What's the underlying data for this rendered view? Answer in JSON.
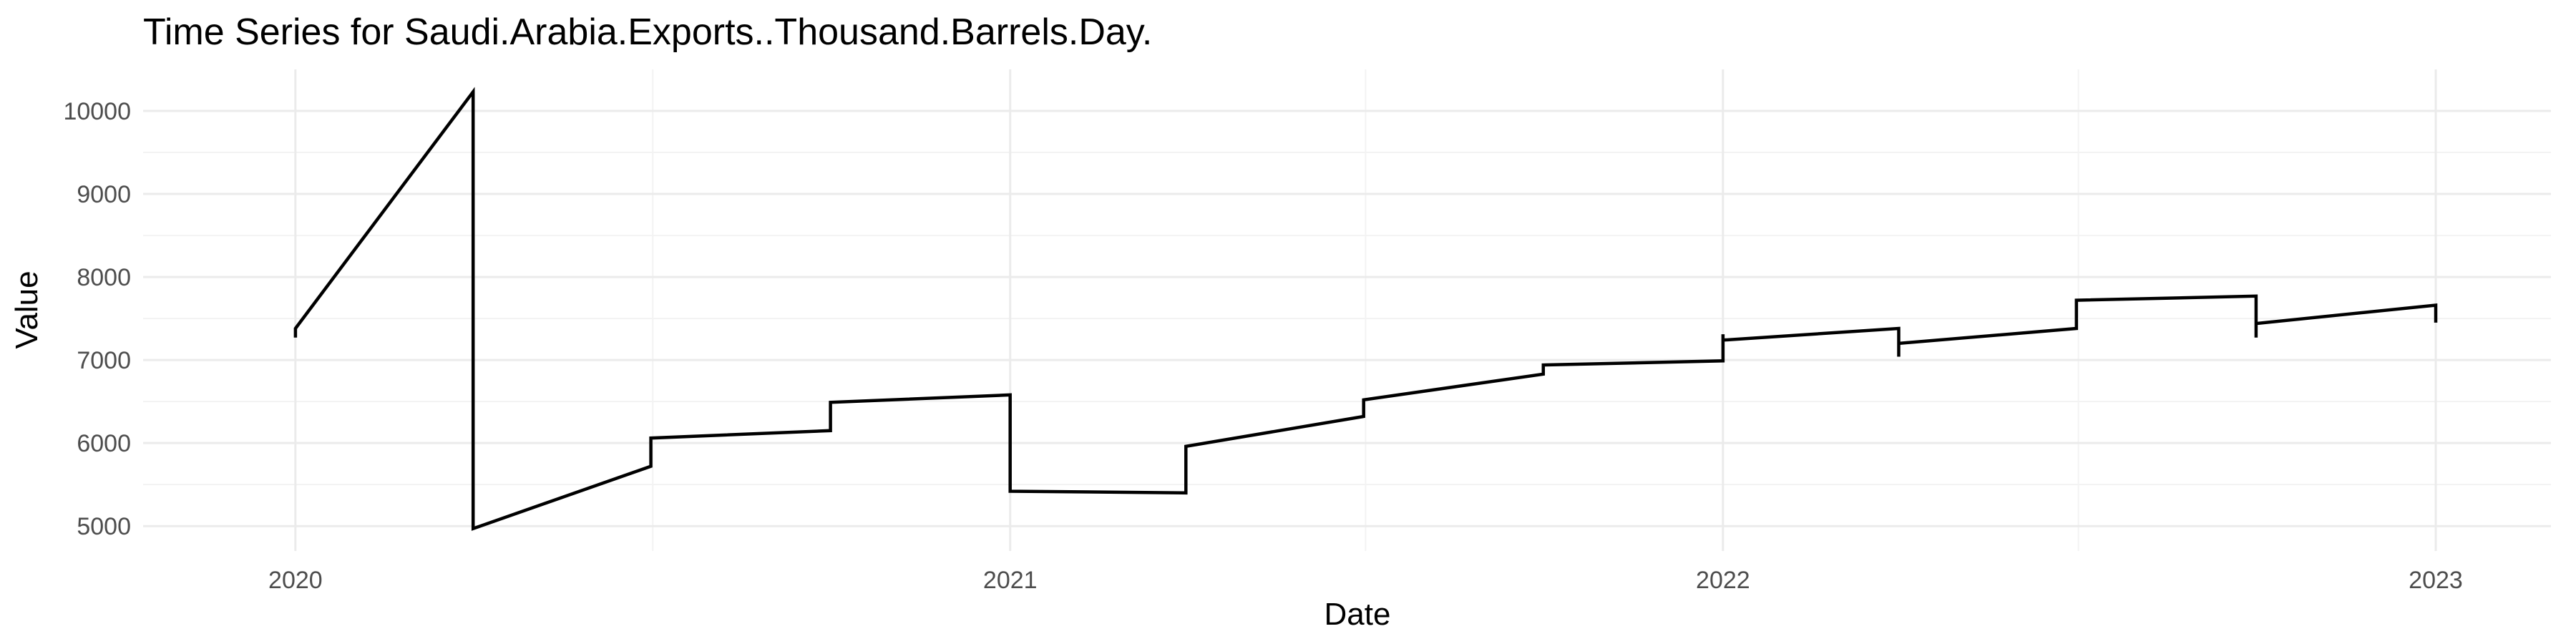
{
  "chart_data": {
    "type": "line",
    "title": "Time Series for Saudi.Arabia.Exports..Thousand.Barrels.Day.",
    "xlabel": "Date",
    "ylabel": "Value",
    "x_ticks": [
      "2020",
      "2021",
      "2022",
      "2023"
    ],
    "y_ticks": [
      5000,
      6000,
      7000,
      8000,
      9000,
      10000
    ],
    "ylim": [
      4700,
      10500
    ],
    "xlim": [
      "2019-10-15",
      "2023-03-01"
    ],
    "grid": true,
    "line_color": "#000000",
    "series": [
      {
        "values": [
          {
            "x": "2020-01-01",
            "y": 7270
          },
          {
            "x": "2020-01-01",
            "y": 7380
          },
          {
            "x": "2020-04-01",
            "y": 10230
          },
          {
            "x": "2020-04-01",
            "y": 4970
          },
          {
            "x": "2020-07-01",
            "y": 5720
          },
          {
            "x": "2020-07-01",
            "y": 6060
          },
          {
            "x": "2020-10-01",
            "y": 6150
          },
          {
            "x": "2020-10-01",
            "y": 6490
          },
          {
            "x": "2021-01-01",
            "y": 6580
          },
          {
            "x": "2021-01-01",
            "y": 5420
          },
          {
            "x": "2021-04-01",
            "y": 5400
          },
          {
            "x": "2021-04-01",
            "y": 5960
          },
          {
            "x": "2021-07-01",
            "y": 6320
          },
          {
            "x": "2021-07-01",
            "y": 6520
          },
          {
            "x": "2021-10-01",
            "y": 6830
          },
          {
            "x": "2021-10-01",
            "y": 6940
          },
          {
            "x": "2022-01-01",
            "y": 6990
          },
          {
            "x": "2022-01-01",
            "y": 7310
          },
          {
            "x": "2022-01-01",
            "y": 7240
          },
          {
            "x": "2022-04-01",
            "y": 7380
          },
          {
            "x": "2022-04-01",
            "y": 7040
          },
          {
            "x": "2022-04-01",
            "y": 7200
          },
          {
            "x": "2022-07-01",
            "y": 7380
          },
          {
            "x": "2022-07-01",
            "y": 7720
          },
          {
            "x": "2022-10-01",
            "y": 7770
          },
          {
            "x": "2022-10-01",
            "y": 7270
          },
          {
            "x": "2022-10-01",
            "y": 7440
          },
          {
            "x": "2023-01-01",
            "y": 7660
          },
          {
            "x": "2023-01-01",
            "y": 7450
          }
        ]
      }
    ]
  }
}
